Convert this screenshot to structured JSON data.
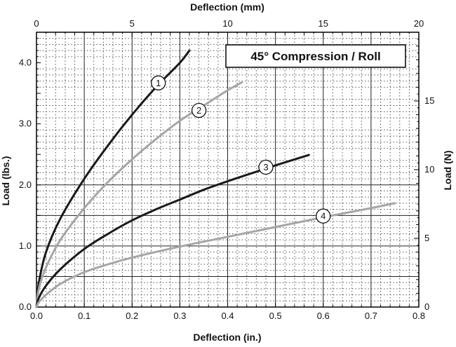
{
  "chart_data": {
    "type": "line",
    "title": "45° Compression / Roll",
    "xlabel": "Deflection (in.)",
    "ylabel": "Load (lbs.)",
    "x2label": "Deflection (mm)",
    "y2label": "Load (N)",
    "xlim": [
      0,
      0.8
    ],
    "ylim": [
      0,
      4.5
    ],
    "x2lim": [
      0,
      20
    ],
    "y2lim": [
      0,
      20
    ],
    "xticks": [
      "0.0",
      "0.1",
      "0.2",
      "0.3",
      "0.4",
      "0.5",
      "0.6",
      "0.7",
      "0.8"
    ],
    "yticks": [
      "0.0",
      "1.0",
      "2.0",
      "3.0",
      "4.0"
    ],
    "x2ticks": [
      "0",
      "5",
      "10",
      "15",
      "20"
    ],
    "y2ticks": [
      "0",
      "5",
      "10",
      "15"
    ],
    "grid": true,
    "series": [
      {
        "marker": "1",
        "color": "#1a1a1a",
        "x": [
          0,
          0.005,
          0.02,
          0.05,
          0.1,
          0.15,
          0.2,
          0.25,
          0.3,
          0.32
        ],
        "y": [
          0,
          0.4,
          0.9,
          1.45,
          2.1,
          2.65,
          3.15,
          3.6,
          4.0,
          4.2
        ],
        "marker_at": [
          0.255,
          3.67
        ]
      },
      {
        "marker": "2",
        "color": "#a6a6a6",
        "x": [
          0,
          0.005,
          0.02,
          0.05,
          0.1,
          0.15,
          0.2,
          0.25,
          0.3,
          0.35,
          0.4,
          0.43
        ],
        "y": [
          0,
          0.3,
          0.65,
          1.1,
          1.62,
          2.05,
          2.42,
          2.75,
          3.05,
          3.3,
          3.55,
          3.68
        ],
        "marker_at": [
          0.34,
          3.22
        ]
      },
      {
        "marker": "3",
        "color": "#1a1a1a",
        "x": [
          0,
          0.005,
          0.02,
          0.05,
          0.1,
          0.15,
          0.2,
          0.25,
          0.3,
          0.35,
          0.4,
          0.45,
          0.5,
          0.57
        ],
        "y": [
          0,
          0.15,
          0.35,
          0.62,
          0.95,
          1.2,
          1.42,
          1.6,
          1.76,
          1.92,
          2.06,
          2.19,
          2.32,
          2.49
        ],
        "marker_at": [
          0.48,
          2.29
        ]
      },
      {
        "marker": "4",
        "color": "#a6a6a6",
        "x": [
          0,
          0.005,
          0.02,
          0.05,
          0.1,
          0.15,
          0.2,
          0.3,
          0.4,
          0.5,
          0.6,
          0.7,
          0.75
        ],
        "y": [
          0,
          0.08,
          0.2,
          0.38,
          0.57,
          0.7,
          0.81,
          0.99,
          1.15,
          1.31,
          1.47,
          1.62,
          1.7
        ],
        "marker_at": [
          0.6,
          1.49
        ]
      }
    ]
  }
}
